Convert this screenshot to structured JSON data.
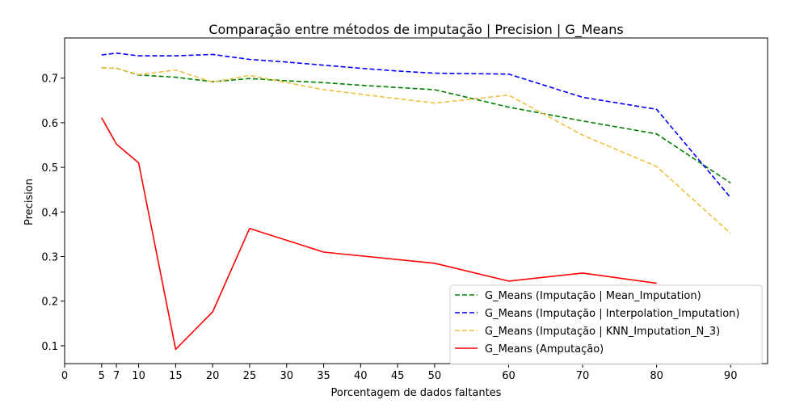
{
  "chart_data": {
    "type": "line",
    "title": "Comparação entre métodos de imputação | Precision | G_Means",
    "xlabel": "Porcentagem de dados faltantes",
    "ylabel": "Precision",
    "xlim": [
      0,
      95
    ],
    "ylim": [
      0.06,
      0.79
    ],
    "x_ticks": [
      0,
      5,
      7,
      10,
      15,
      20,
      25,
      30,
      35,
      40,
      45,
      50,
      60,
      70,
      80,
      90
    ],
    "y_ticks": [
      0.1,
      0.2,
      0.3,
      0.4,
      0.5,
      0.6,
      0.7
    ],
    "grid": false,
    "legend_position": "lower-right",
    "series": [
      {
        "name": "G_Means (Imputação | Mean_Imputation)",
        "color": "#008000",
        "style": "dashed",
        "x": [
          5,
          7,
          10,
          15,
          20,
          25,
          30,
          35,
          40,
          45,
          50,
          60,
          70,
          80,
          90
        ],
        "y": [
          0.723,
          0.722,
          0.707,
          0.702,
          0.692,
          0.699,
          0.694,
          0.69,
          0.684,
          0.679,
          0.674,
          0.635,
          0.604,
          0.575,
          0.465
        ]
      },
      {
        "name": "G_Means (Imputação | Interpolation_Imputation)",
        "color": "#0000ff",
        "style": "dashed",
        "x": [
          5,
          7,
          10,
          15,
          20,
          25,
          30,
          35,
          40,
          45,
          50,
          60,
          70,
          80,
          90
        ],
        "y": [
          0.752,
          0.756,
          0.75,
          0.75,
          0.753,
          0.742,
          0.736,
          0.729,
          0.722,
          0.716,
          0.711,
          0.709,
          0.657,
          0.63,
          0.432
        ]
      },
      {
        "name": "G_Means (Imputação | KNN_Imputation_N_3)",
        "color": "#f0c040",
        "style": "dashed",
        "x": [
          5,
          7,
          10,
          15,
          20,
          25,
          30,
          35,
          40,
          45,
          50,
          60,
          70,
          80,
          90
        ],
        "y": [
          0.723,
          0.722,
          0.708,
          0.718,
          0.691,
          0.706,
          0.69,
          0.674,
          0.664,
          0.654,
          0.644,
          0.662,
          0.572,
          0.502,
          0.352
        ]
      },
      {
        "name": "G_Means (Amputação)",
        "color": "#ff0000",
        "style": "solid",
        "x": [
          5,
          7,
          10,
          15,
          20,
          25,
          35,
          50,
          60,
          70,
          80
        ],
        "y": [
          0.611,
          0.552,
          0.51,
          0.092,
          0.176,
          0.363,
          0.31,
          0.285,
          0.245,
          0.263,
          0.24
        ]
      }
    ]
  }
}
